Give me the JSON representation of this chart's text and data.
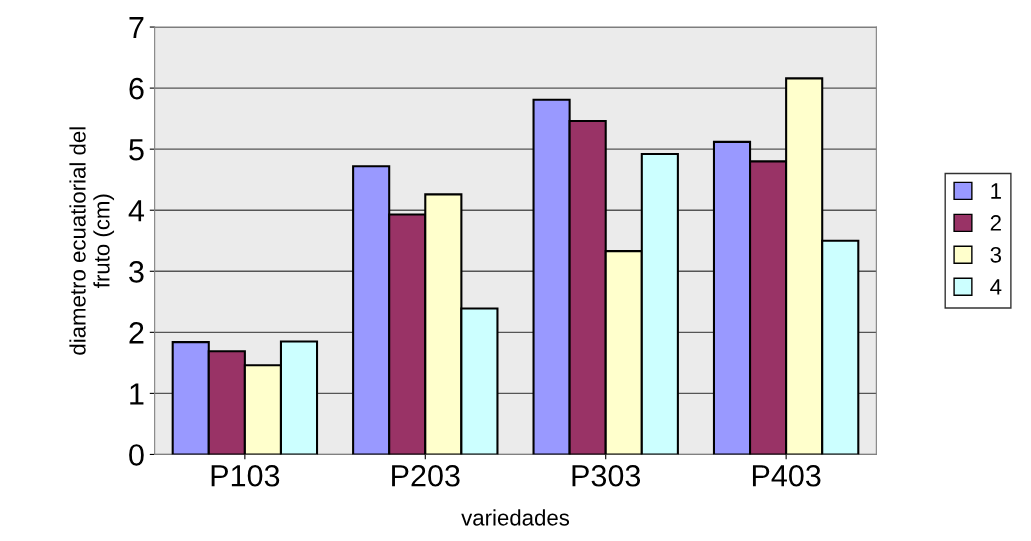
{
  "chart_data": {
    "type": "bar",
    "xlabel": "variedades",
    "ylabel": "diametro ecuatiorial del\nfruto (cm)",
    "categories": [
      "P103",
      "P203",
      "P303",
      "P403"
    ],
    "series": [
      {
        "name": "1",
        "color": "#9999ff",
        "values": [
          1.84,
          4.72,
          5.81,
          5.12
        ]
      },
      {
        "name": "2",
        "color": "#993366",
        "values": [
          1.69,
          3.93,
          5.46,
          4.8
        ]
      },
      {
        "name": "3",
        "color": "#ffffcc",
        "values": [
          1.46,
          4.26,
          3.33,
          6.16
        ]
      },
      {
        "name": "4",
        "color": "#ccffff",
        "values": [
          1.85,
          2.39,
          4.92,
          3.5
        ]
      }
    ],
    "ylim": [
      0,
      7
    ],
    "yticks": [
      0,
      1,
      2,
      3,
      4,
      5,
      6,
      7
    ],
    "grid": "y",
    "legend": "right"
  }
}
